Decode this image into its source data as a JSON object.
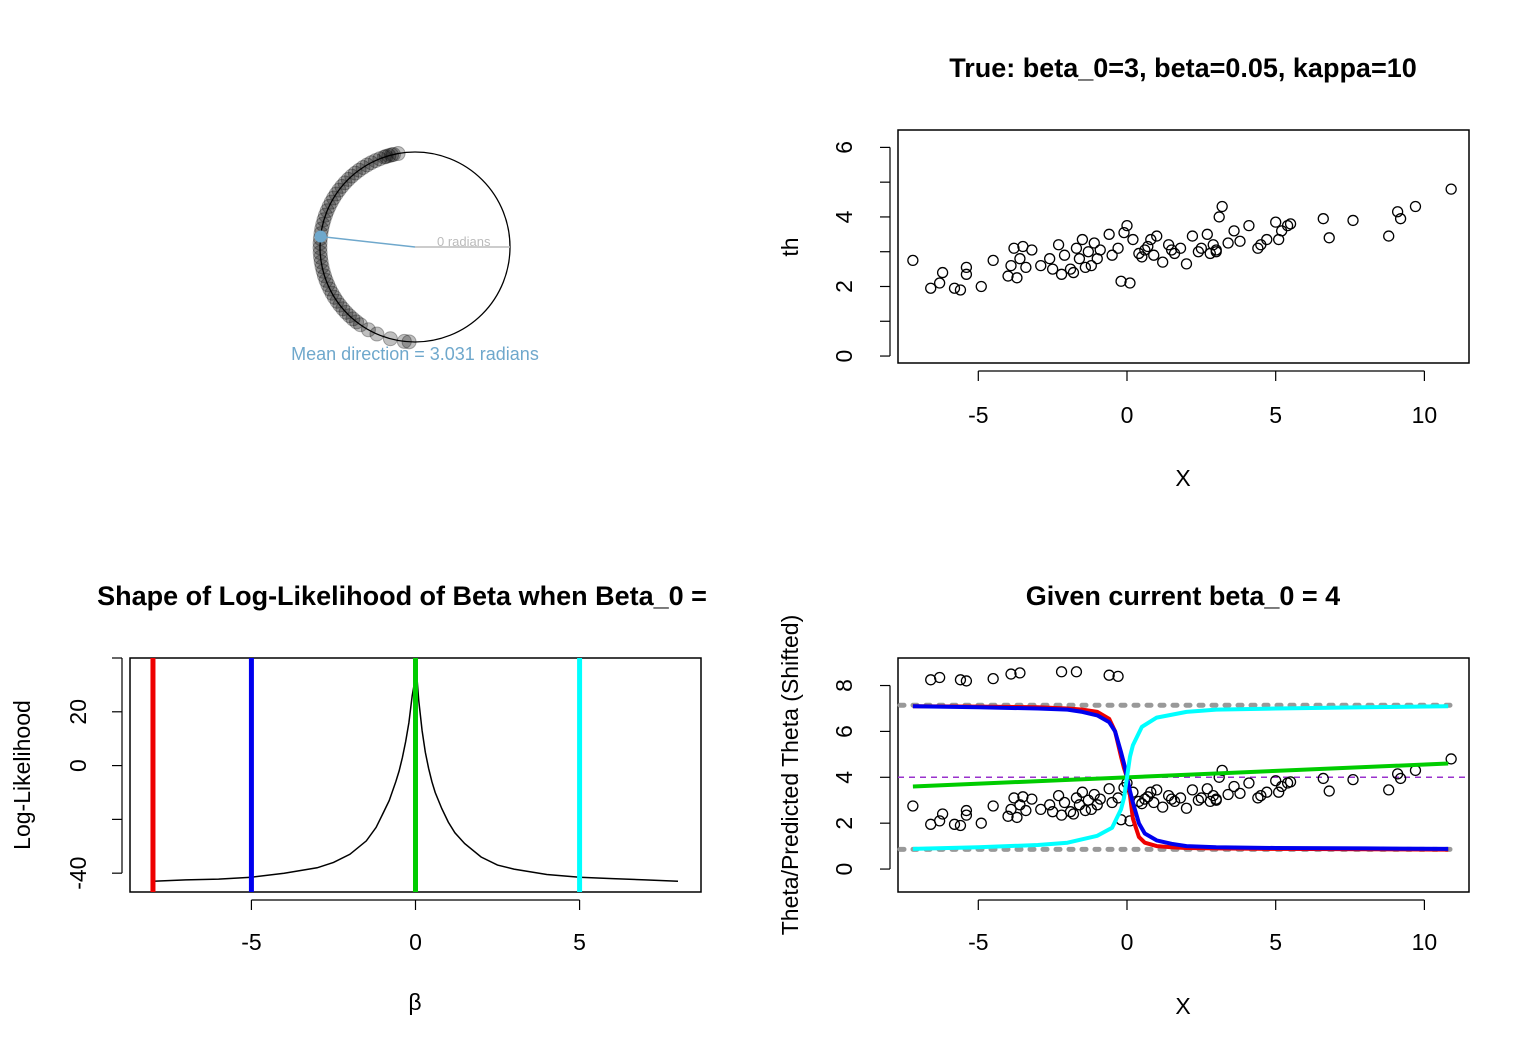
{
  "chart_data": [
    {
      "type": "circular-scatter",
      "mean_direction_label": "Mean direction = 3.031 radians",
      "zero_label": "0 radians",
      "mean_direction": 3.031,
      "colors": {
        "mean": "#6fa8cc",
        "zero": "#bbbbbb",
        "points": "#000000"
      },
      "angles": [
        1.75,
        1.8,
        1.82,
        1.85,
        1.88,
        1.9,
        1.95,
        2.0,
        2.05,
        2.1,
        2.15,
        2.2,
        2.25,
        2.3,
        2.35,
        2.4,
        2.45,
        2.5,
        2.55,
        2.6,
        2.65,
        2.7,
        2.75,
        2.8,
        2.85,
        2.9,
        2.95,
        3.0,
        3.05,
        3.1,
        3.15,
        3.2,
        3.25,
        3.3,
        3.35,
        3.4,
        3.45,
        3.5,
        3.55,
        3.6,
        3.65,
        3.7,
        3.75,
        3.8,
        3.85,
        3.9,
        3.95,
        4.0,
        4.05,
        4.1,
        4.2,
        4.3,
        4.45,
        4.6,
        4.65
      ]
    },
    {
      "type": "scatter",
      "title": "True: beta_0=3, beta=0.05, kappa=10",
      "xlabel": "X",
      "ylabel": "th",
      "xlim": [
        -7.7,
        11.5
      ],
      "ylim": [
        -0.2,
        6.5
      ],
      "xticks": [
        -5,
        0,
        5,
        10
      ],
      "yticks": [
        0,
        2,
        4,
        6
      ],
      "x": [
        -7.2,
        -6.6,
        -6.3,
        -6.2,
        -5.8,
        -5.6,
        -5.4,
        -5.4,
        -4.9,
        -4.5,
        -4.0,
        -3.9,
        -3.8,
        -3.7,
        -3.6,
        -3.5,
        -3.4,
        -3.2,
        -2.9,
        -2.6,
        -2.5,
        -2.3,
        -2.2,
        -2.1,
        -1.9,
        -1.8,
        -1.7,
        -1.6,
        -1.5,
        -1.4,
        -1.3,
        -1.2,
        -1.1,
        -1.0,
        -0.9,
        -0.6,
        -0.5,
        -0.3,
        -0.2,
        -0.1,
        0.0,
        0.1,
        0.2,
        0.4,
        0.5,
        0.6,
        0.7,
        0.8,
        0.9,
        1.0,
        1.2,
        1.4,
        1.5,
        1.6,
        1.8,
        2.0,
        2.2,
        2.4,
        2.5,
        2.7,
        2.8,
        2.9,
        3.0,
        3.0,
        3.1,
        3.2,
        3.4,
        3.6,
        3.8,
        4.1,
        4.4,
        4.5,
        4.7,
        5.0,
        5.1,
        5.2,
        5.4,
        5.5,
        6.6,
        6.8,
        7.6,
        8.8,
        9.1,
        9.2,
        9.7,
        10.9
      ],
      "y": [
        2.75,
        1.95,
        2.1,
        2.4,
        1.95,
        1.9,
        2.35,
        2.55,
        2.0,
        2.75,
        2.3,
        2.6,
        3.1,
        2.25,
        2.8,
        3.15,
        2.55,
        3.05,
        2.6,
        2.8,
        2.5,
        3.2,
        2.35,
        2.9,
        2.5,
        2.4,
        3.1,
        2.8,
        3.35,
        2.55,
        3.0,
        2.6,
        3.25,
        2.8,
        3.05,
        3.5,
        2.9,
        3.1,
        2.15,
        3.55,
        3.75,
        2.1,
        3.35,
        2.95,
        2.85,
        3.05,
        3.15,
        3.35,
        2.9,
        3.45,
        2.7,
        3.2,
        3.05,
        2.95,
        3.1,
        2.65,
        3.45,
        3.0,
        3.1,
        3.5,
        2.95,
        3.2,
        3.0,
        3.05,
        4.0,
        4.3,
        3.25,
        3.6,
        3.3,
        3.75,
        3.1,
        3.2,
        3.35,
        3.85,
        3.35,
        3.6,
        3.75,
        3.8,
        3.95,
        3.4,
        3.9,
        3.45,
        4.15,
        3.95,
        4.3,
        4.8
      ]
    },
    {
      "type": "line",
      "title": "Shape of Log-Likelihood of Beta when Beta_0 =",
      "xlabel": "β",
      "ylabel": "Log-Likelihood",
      "xlim": [
        -8.7,
        8.7
      ],
      "ylim": [
        -47,
        40
      ],
      "xticks": [
        -5,
        0,
        5
      ],
      "yticks": [
        -40,
        0,
        20
      ],
      "curve_x": [
        -8,
        -7,
        -6,
        -5,
        -4,
        -3,
        -2.5,
        -2,
        -1.5,
        -1.2,
        -1,
        -0.8,
        -0.6,
        -0.5,
        -0.4,
        -0.3,
        -0.2,
        -0.1,
        0,
        0.05,
        0.1,
        0.2,
        0.3,
        0.4,
        0.5,
        0.6,
        0.8,
        1,
        1.2,
        1.5,
        2,
        2.5,
        3,
        4,
        5,
        6,
        7,
        8
      ],
      "curve_y": [
        -43,
        -42.5,
        -42.2,
        -41.5,
        -40,
        -38,
        -36,
        -33,
        -28,
        -23,
        -18,
        -13,
        -6,
        -2,
        3,
        9,
        16,
        26,
        33,
        32,
        24,
        13,
        5,
        -1,
        -6,
        -10,
        -16,
        -21,
        -25,
        -29,
        -34,
        -37,
        -38.5,
        -40.5,
        -41.5,
        -42,
        -42.5,
        -43
      ],
      "vlines": [
        {
          "x": -8,
          "color": "#ee0000"
        },
        {
          "x": -5,
          "color": "#0000ee"
        },
        {
          "x": 0,
          "color": "#00cc00"
        },
        {
          "x": 5,
          "color": "#00ffff"
        }
      ]
    },
    {
      "type": "scatter",
      "title": "Given current beta_0 = 4",
      "xlabel": "X",
      "ylabel": "Theta/Predicted Theta (Shifted)",
      "xlim": [
        -7.7,
        11.5
      ],
      "ylim": [
        -1,
        9.2
      ],
      "xticks": [
        -5,
        0,
        5,
        10
      ],
      "yticks": [
        0,
        2,
        4,
        6,
        8
      ],
      "hline": {
        "y": 4,
        "color": "#9932cc"
      },
      "bounds": {
        "upper": 7.14,
        "lower": 0.86,
        "color": "#999999"
      },
      "extra_x": [
        -6.6,
        -6.3,
        -5.6,
        -5.4,
        -4.5,
        -3.9,
        -3.6,
        -2.2,
        -1.7,
        -0.6,
        -0.3
      ],
      "extra_y": [
        8.25,
        8.35,
        8.25,
        8.2,
        8.3,
        8.5,
        8.55,
        8.6,
        8.6,
        8.45,
        8.4
      ],
      "lines": [
        {
          "name": "",
          "color": "#ee0000",
          "x": [
            -7.2,
            -5,
            -3,
            -2,
            -1.5,
            -1,
            -0.6,
            -0.4,
            -0.2,
            -0.1,
            0,
            0.1,
            0.2,
            0.4,
            0.6,
            1,
            1.5,
            2,
            3,
            5,
            8,
            10.8
          ],
          "y": [
            7.1,
            7.08,
            7.05,
            7.0,
            6.95,
            6.85,
            6.55,
            6.0,
            4.9,
            4.4,
            4.0,
            3.2,
            2.2,
            1.4,
            1.15,
            1.0,
            0.95,
            0.92,
            0.9,
            0.88,
            0.86,
            0.85
          ]
        },
        {
          "name": "",
          "color": "#0000ee",
          "x": [
            -7.2,
            -5,
            -3,
            -2,
            -1.5,
            -1,
            -0.6,
            -0.4,
            -0.2,
            -0.1,
            0,
            0.1,
            0.2,
            0.4,
            0.6,
            1,
            1.5,
            2,
            3,
            5,
            8,
            10.8
          ],
          "y": [
            7.1,
            7.05,
            7.0,
            6.95,
            6.85,
            6.7,
            6.4,
            6.0,
            5.1,
            4.6,
            4.0,
            3.4,
            2.9,
            2.0,
            1.55,
            1.25,
            1.1,
            1.0,
            0.95,
            0.92,
            0.9,
            0.88
          ]
        },
        {
          "name": "",
          "color": "#00cc00",
          "x": [
            -7.2,
            10.8
          ],
          "y": [
            3.6,
            4.6
          ]
        },
        {
          "name": "",
          "color": "#00ffff",
          "x": [
            -7.2,
            -5,
            -3,
            -2,
            -1,
            -0.5,
            -0.2,
            -0.1,
            0,
            0.1,
            0.2,
            0.5,
            1,
            2,
            3,
            5,
            8,
            10.8
          ],
          "y": [
            0.88,
            0.95,
            1.05,
            1.15,
            1.45,
            1.8,
            2.6,
            3.1,
            4.0,
            4.9,
            5.4,
            6.2,
            6.6,
            6.85,
            6.95,
            7.0,
            7.05,
            7.1
          ]
        }
      ],
      "x": [
        -7.2,
        -6.6,
        -6.3,
        -6.2,
        -5.8,
        -5.6,
        -5.4,
        -5.4,
        -4.9,
        -4.5,
        -4.0,
        -3.9,
        -3.8,
        -3.7,
        -3.6,
        -3.5,
        -3.4,
        -3.2,
        -2.9,
        -2.6,
        -2.5,
        -2.3,
        -2.2,
        -2.1,
        -1.9,
        -1.8,
        -1.7,
        -1.6,
        -1.5,
        -1.4,
        -1.3,
        -1.2,
        -1.1,
        -1.0,
        -0.9,
        -0.6,
        -0.5,
        -0.3,
        -0.2,
        -0.1,
        0.0,
        0.1,
        0.2,
        0.4,
        0.5,
        0.6,
        0.7,
        0.8,
        0.9,
        1.0,
        1.2,
        1.4,
        1.5,
        1.6,
        1.8,
        2.0,
        2.2,
        2.4,
        2.5,
        2.7,
        2.8,
        2.9,
        3.0,
        3.0,
        3.1,
        3.2,
        3.4,
        3.6,
        3.8,
        4.1,
        4.4,
        4.5,
        4.7,
        5.0,
        5.1,
        5.2,
        5.4,
        5.5,
        6.6,
        6.8,
        7.6,
        8.8,
        9.1,
        9.2,
        9.7,
        10.9
      ],
      "y": [
        2.75,
        1.95,
        2.1,
        2.4,
        1.95,
        1.9,
        2.35,
        2.55,
        2.0,
        2.75,
        2.3,
        2.6,
        3.1,
        2.25,
        2.8,
        3.15,
        2.55,
        3.05,
        2.6,
        2.8,
        2.5,
        3.2,
        2.35,
        2.9,
        2.5,
        2.4,
        3.1,
        2.8,
        3.35,
        2.55,
        3.0,
        2.6,
        3.25,
        2.8,
        3.05,
        3.5,
        2.9,
        3.1,
        2.15,
        3.55,
        3.75,
        2.1,
        3.35,
        2.95,
        2.85,
        3.05,
        3.15,
        3.35,
        2.9,
        3.45,
        2.7,
        3.2,
        3.05,
        2.95,
        3.1,
        2.65,
        3.45,
        3.0,
        3.1,
        3.5,
        2.95,
        3.2,
        3.0,
        3.05,
        4.0,
        4.3,
        3.25,
        3.6,
        3.3,
        3.75,
        3.1,
        3.2,
        3.35,
        3.85,
        3.35,
        3.6,
        3.75,
        3.8,
        3.95,
        3.4,
        3.9,
        3.45,
        4.15,
        3.95,
        4.3,
        4.8
      ]
    }
  ]
}
